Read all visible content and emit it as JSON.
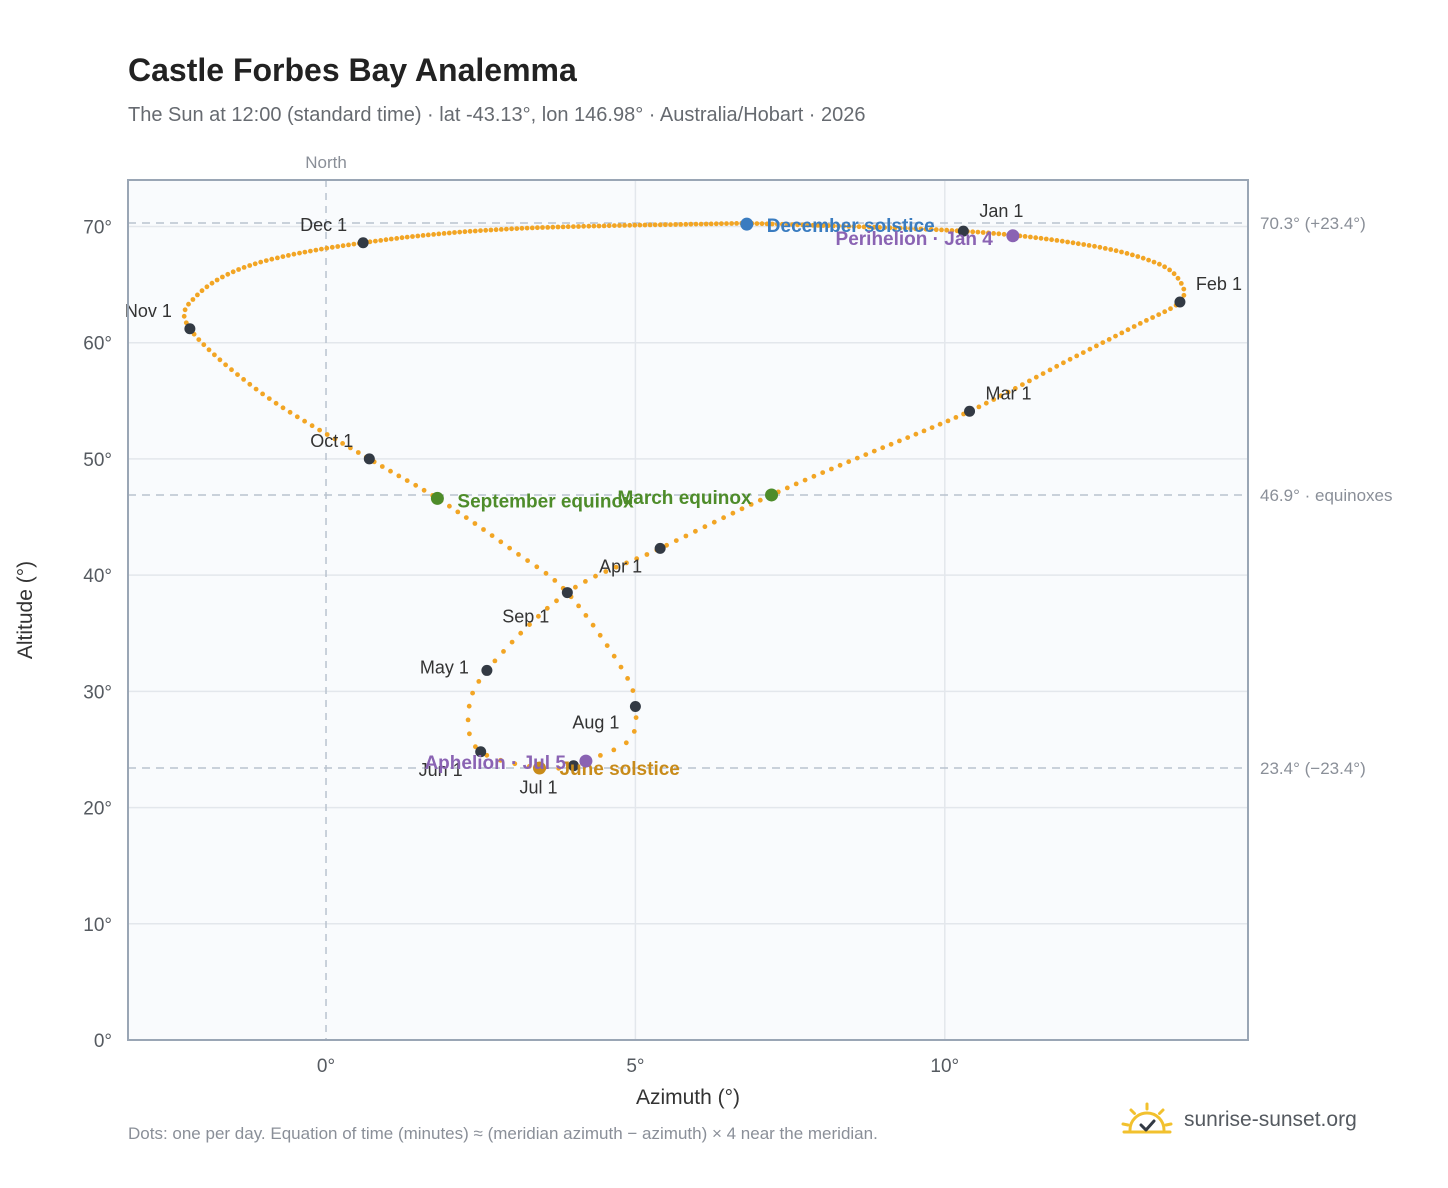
{
  "header": {
    "title": "Castle Forbes Bay Analemma",
    "subtitle": "The Sun at 12:00 (standard time) · lat -43.13°, lon 146.98° · Australia/Hobart · 2026"
  },
  "footer": {
    "note": "Dots: one per day. Equation of time (minutes) ≈ (meridian azimuth − azimuth) × 4 near the meridian.",
    "brand": "sunrise-sunset.org",
    "brand_icon": "sun-check-icon"
  },
  "chart_data": {
    "type": "scatter",
    "xlabel": "Azimuth (°)",
    "ylabel": "Altitude (°)",
    "xlim": [
      -3.2,
      14.9
    ],
    "ylim": [
      0,
      74
    ],
    "x_ticks": [
      {
        "value": 0,
        "label": "0°"
      },
      {
        "value": 5,
        "label": "5°"
      },
      {
        "value": 10,
        "label": "10°"
      }
    ],
    "y_ticks": [
      {
        "value": 0,
        "label": "0°"
      },
      {
        "value": 10,
        "label": "10°"
      },
      {
        "value": 20,
        "label": "20°"
      },
      {
        "value": 30,
        "label": "30°"
      },
      {
        "value": 40,
        "label": "40°"
      },
      {
        "value": 50,
        "label": "50°"
      },
      {
        "value": 60,
        "label": "60°"
      },
      {
        "value": 70,
        "label": "70°"
      }
    ],
    "grid": true,
    "meridian": {
      "value": 0,
      "label": "North"
    },
    "reference_lines": [
      {
        "value": 70.3,
        "label": "70.3° (+23.4°)"
      },
      {
        "value": 46.9,
        "label": "46.9° · equinoxes"
      },
      {
        "value": 23.4,
        "label": "23.4° (−23.4°)"
      }
    ],
    "series_color": "#f2a524",
    "month_markers": [
      {
        "label": "Jan 1",
        "az": 10.3,
        "alt": 69.6
      },
      {
        "label": "Feb 1",
        "az": 13.8,
        "alt": 63.5
      },
      {
        "label": "Mar 1",
        "az": 10.4,
        "alt": 54.1
      },
      {
        "label": "Apr 1",
        "az": 5.4,
        "alt": 42.3
      },
      {
        "label": "May 1",
        "az": 2.6,
        "alt": 31.8
      },
      {
        "label": "Jun 1",
        "az": 2.5,
        "alt": 24.8
      },
      {
        "label": "Jul 1",
        "az": 4.0,
        "alt": 23.6
      },
      {
        "label": "Aug 1",
        "az": 5.0,
        "alt": 28.7
      },
      {
        "label": "Sep 1",
        "az": 3.9,
        "alt": 38.5
      },
      {
        "label": "Oct 1",
        "az": 0.7,
        "alt": 50.0
      },
      {
        "label": "Nov 1",
        "az": -2.2,
        "alt": 61.2
      },
      {
        "label": "Dec 1",
        "az": 0.6,
        "alt": 68.6
      }
    ],
    "events": [
      {
        "label": "December solstice",
        "az": 6.8,
        "alt": 70.2,
        "color": "#3a7cc0"
      },
      {
        "label": "Perihelion · Jan 4",
        "az": 11.1,
        "alt": 69.2,
        "color": "#8a63b3"
      },
      {
        "label": "March equinox",
        "az": 7.2,
        "alt": 46.9,
        "color": "#4e8c2a"
      },
      {
        "label": "September equinox",
        "az": 1.8,
        "alt": 46.6,
        "color": "#4e8c2a"
      },
      {
        "label": "June solstice",
        "az": 3.45,
        "alt": 23.4,
        "color": "#c88b1a"
      },
      {
        "label": "Aphelion · Jul 5",
        "az": 4.2,
        "alt": 24.0,
        "color": "#8a63b3"
      }
    ],
    "path_keypoints": [
      [
        6.8,
        70.28
      ],
      [
        10.3,
        69.6
      ],
      [
        12.3,
        68.4
      ],
      [
        13.4,
        66.9
      ],
      [
        13.8,
        65.3
      ],
      [
        13.8,
        63.5
      ],
      [
        13.1,
        61.5
      ],
      [
        12.0,
        58.5
      ],
      [
        10.4,
        54.1
      ],
      [
        8.6,
        50.1
      ],
      [
        7.2,
        46.9
      ],
      [
        5.4,
        42.3
      ],
      [
        3.9,
        38.5
      ],
      [
        2.6,
        31.8
      ],
      [
        2.3,
        28.0
      ],
      [
        2.5,
        24.8
      ],
      [
        3.45,
        23.4
      ],
      [
        4.0,
        23.6
      ],
      [
        4.2,
        24.0
      ],
      [
        4.9,
        25.8
      ],
      [
        5.0,
        28.7
      ],
      [
        4.8,
        31.8
      ],
      [
        3.9,
        38.5
      ],
      [
        3.0,
        42.2
      ],
      [
        1.8,
        46.6
      ],
      [
        0.7,
        50.0
      ],
      [
        -1.0,
        55.5
      ],
      [
        -2.2,
        61.2
      ],
      [
        -2.1,
        64.0
      ],
      [
        -1.2,
        66.7
      ],
      [
        0.6,
        68.6
      ],
      [
        3.0,
        69.8
      ],
      [
        6.8,
        70.28
      ]
    ]
  }
}
